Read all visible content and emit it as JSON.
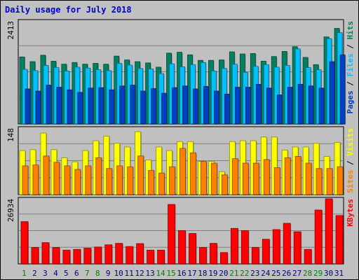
{
  "chart_data": {
    "type": "bar",
    "title": "Daily usage for July 2018",
    "categories": [
      "1",
      "2",
      "3",
      "4",
      "5",
      "6",
      "7",
      "8",
      "9",
      "10",
      "11",
      "12",
      "13",
      "14",
      "15",
      "16",
      "17",
      "18",
      "19",
      "20",
      "21",
      "22",
      "23",
      "24",
      "25",
      "26",
      "27",
      "28",
      "29",
      "30",
      "31"
    ],
    "weekend_days": [
      "1",
      "7",
      "8",
      "14",
      "15",
      "21",
      "22",
      "28",
      "29"
    ],
    "panels": {
      "hits_files_pages": {
        "max_label": "2413",
        "legend": [
          "Pages",
          "Files",
          "Hits"
        ],
        "ylim": [
          0,
          2413
        ],
        "series": [
          {
            "name": "Hits",
            "color": "#008060",
            "values": [
              1570,
              1460,
              1610,
              1470,
              1400,
              1440,
              1400,
              1420,
              1400,
              1590,
              1500,
              1460,
              1430,
              1330,
              1660,
              1680,
              1620,
              1490,
              1490,
              1500,
              1690,
              1640,
              1650,
              1470,
              1580,
              1700,
              1810,
              1560,
              1390,
              2040,
              2240
            ]
          },
          {
            "name": "Files",
            "color": "#00c0ff",
            "values": [
              1280,
              1250,
              1370,
              1320,
              1240,
              1330,
              1310,
              1270,
              1250,
              1420,
              1380,
              1300,
              1290,
              1180,
              1410,
              1340,
              1390,
              1440,
              1240,
              1300,
              1400,
              1210,
              1350,
              1390,
              1330,
              1370,
              1760,
              1320,
              1270,
              2000,
              2140
            ]
          },
          {
            "name": "Pages",
            "color": "#0040c0",
            "values": [
              820,
              770,
              910,
              860,
              800,
              740,
              840,
              850,
              800,
              890,
              910,
              770,
              830,
              720,
              850,
              890,
              820,
              880,
              770,
              700,
              860,
              860,
              930,
              840,
              680,
              860,
              930,
              890,
              840,
              1460,
              1620
            ]
          }
        ]
      },
      "visits_sites": {
        "max_label": "148",
        "legend": [
          "Sites",
          "Visits"
        ],
        "ylim": [
          0,
          148
        ],
        "series": [
          {
            "name": "Visits",
            "color": "#ffff00",
            "values": [
              98,
              100,
              137,
              100,
              82,
              73,
              98,
              120,
              130,
              114,
              106,
              140,
              77,
              106,
              98,
              118,
              118,
              74,
              74,
              51,
              118,
              120,
              120,
              128,
              128,
              99,
              106,
              106,
              114,
              85,
              116
            ]
          },
          {
            "name": "Sites",
            "color": "#ff8000",
            "values": [
              64,
              66,
              86,
              72,
              64,
              56,
              64,
              82,
              58,
              64,
              62,
              86,
              54,
              48,
              62,
              103,
              93,
              74,
              70,
              44,
              80,
              70,
              70,
              78,
              60,
              82,
              85,
              70,
              58,
              58,
              62
            ]
          }
        ]
      },
      "kbytes": {
        "max_label": "26934",
        "legend": [
          "KBytes"
        ],
        "ylim": [
          0,
          26934
        ],
        "series": [
          {
            "name": "KBytes",
            "color": "#ff0000",
            "values": [
              17500,
              6800,
              8800,
              6800,
              5700,
              6000,
              6500,
              7000,
              7900,
              8500,
              7200,
              8400,
              5700,
              5700,
              24600,
              13800,
              12600,
              6800,
              8500,
              4700,
              14700,
              13800,
              6800,
              10200,
              14200,
              16800,
              13300,
              6000,
              22300,
              27000,
              20000
            ]
          }
        ]
      }
    }
  },
  "colors": {
    "background": "#c0c0c0",
    "plot_bg": "#c0c0c0",
    "grid": "#808080",
    "title": "#0000cc",
    "weekday_label": "#000080",
    "weekend_label": "#008000"
  }
}
